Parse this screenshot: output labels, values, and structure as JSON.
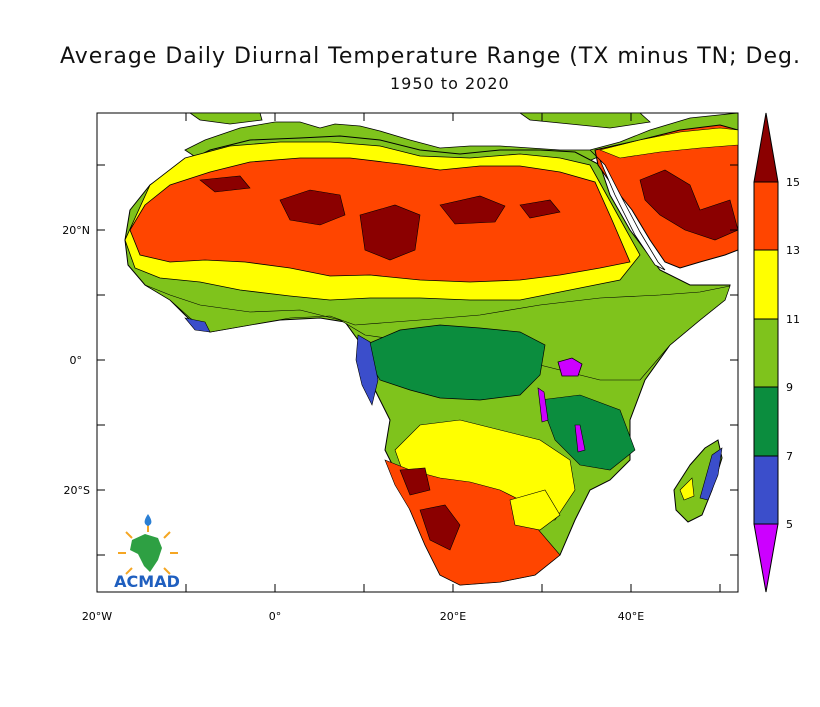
{
  "title": "Average Daily Diurnal Temperature Range (TX minus TN; Deg.",
  "subtitle": "1950 to 2020",
  "y_ticks": [
    "20°N",
    "0°",
    "20°S"
  ],
  "x_ticks": [
    "20°W",
    "0°",
    "20°E",
    "40°E"
  ],
  "colorbar": {
    "labels": [
      "15",
      "13",
      "11",
      "9",
      "7",
      "5"
    ],
    "colors": [
      "#8b0000",
      "#ff4500",
      "#ffff00",
      "#7fc31c",
      "#0b8d3e",
      "#3b4ecb",
      "#cc00ff"
    ]
  },
  "logo": {
    "text": "ACMAD"
  },
  "colors": {
    "ocean": "#ffffff",
    "land_outline": "#000000",
    "accent_dark_red": "#8b0000",
    "accent_orange_red": "#ff4500"
  }
}
